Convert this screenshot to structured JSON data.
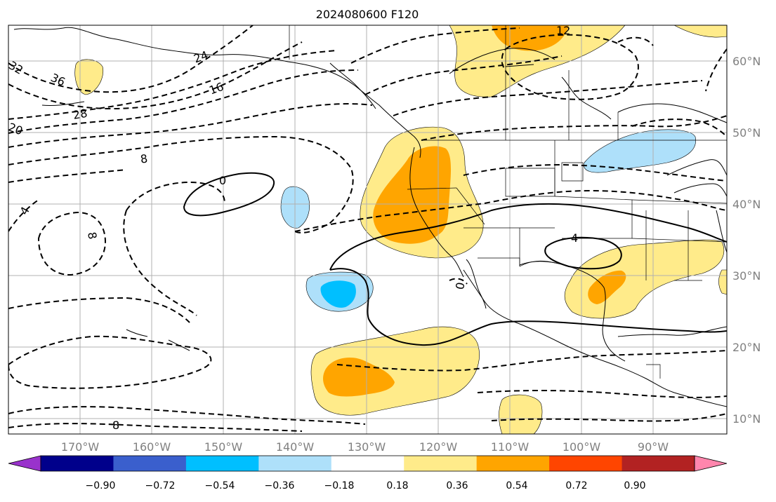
{
  "title": "2024080600 F120",
  "map": {
    "lon_labels": [
      "170°W",
      "160°W",
      "150°W",
      "140°W",
      "130°W",
      "120°W",
      "110°W",
      "100°W",
      "90°W"
    ],
    "lat_labels": [
      "60°N",
      "50°N",
      "40°N",
      "30°N",
      "20°N",
      "10°N"
    ],
    "contour_labels": [
      "32",
      "36",
      "28",
      "24",
      "16",
      "12",
      "8",
      "0",
      "4",
      "8",
      "4",
      "0",
      "8",
      "20"
    ]
  },
  "colorbar": {
    "ticks": [
      "−0.90",
      "−0.72",
      "−0.54",
      "−0.36",
      "−0.18",
      "0.18",
      "0.36",
      "0.54",
      "0.72",
      "0.90"
    ],
    "colors": [
      "#9932cc",
      "#00008b",
      "#3a5fcd",
      "#00bfff",
      "#aee0fa",
      "#ffffff",
      "#ffeb8a",
      "#ffa500",
      "#ff4500",
      "#b22222",
      "#ff86ad"
    ]
  },
  "colors": {
    "yellow": "#ffeb8a",
    "orange": "#ffa500",
    "light_blue": "#aee0fa",
    "blue": "#00bfff",
    "grid": "#b0b0b0",
    "axis_label": "#808080"
  }
}
